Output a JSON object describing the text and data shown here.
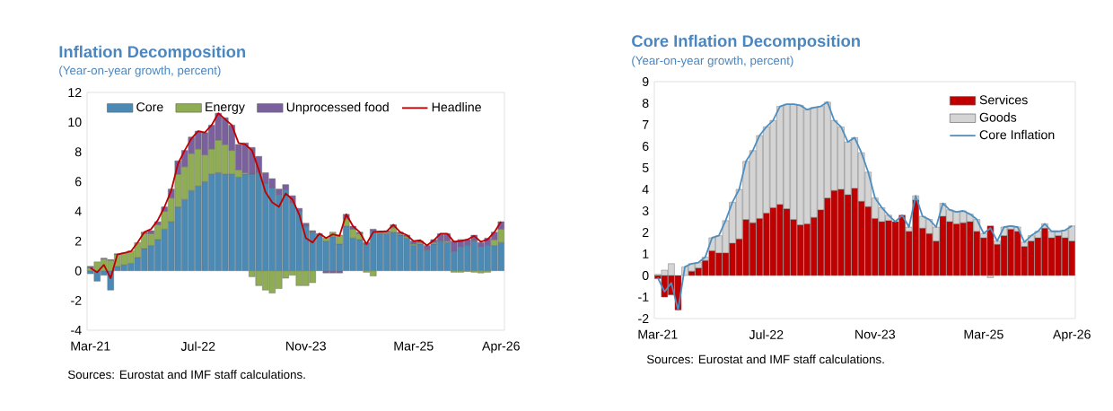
{
  "chart_data": [
    {
      "type": "bar",
      "title": "Inflation Decomposition",
      "subtitle": "(Year-on-year growth, percent)",
      "stacked": true,
      "legend": "top",
      "categories": [
        "Mar-21",
        null,
        null,
        null,
        null,
        null,
        null,
        null,
        null,
        null,
        null,
        null,
        null,
        null,
        null,
        null,
        "Jul-22",
        null,
        null,
        null,
        null,
        null,
        null,
        null,
        null,
        null,
        null,
        null,
        null,
        null,
        null,
        null,
        "Nov-23",
        null,
        null,
        null,
        null,
        null,
        null,
        null,
        null,
        null,
        null,
        null,
        null,
        null,
        null,
        null,
        "Mar-25",
        null,
        null,
        null,
        null,
        null,
        null,
        null,
        null,
        null,
        null,
        null,
        null,
        "Apr-26"
      ],
      "ylim": [
        -4,
        12
      ],
      "yticks": [
        -4,
        -2,
        0,
        2,
        4,
        6,
        8,
        10,
        12
      ],
      "series": [
        {
          "name": "Core",
          "color": "#4a8ab5",
          "values": [
            -0.2,
            -0.7,
            -0.3,
            -1.3,
            0.3,
            0.4,
            0.5,
            0.9,
            1.5,
            1.7,
            2.1,
            2.8,
            3.3,
            4.3,
            4.8,
            5.4,
            5.7,
            6.0,
            6.5,
            6.6,
            6.5,
            6.5,
            6.3,
            6.5,
            6.5,
            6.6,
            5.9,
            5.6,
            5.1,
            5.45,
            4.55,
            4.0,
            3.0,
            2.6,
            2.4,
            2.0,
            2.3,
            1.8,
            3.0,
            2.2,
            2.1,
            1.8,
            2.7,
            2.5,
            2.5,
            2.6,
            2.4,
            2.2,
            1.7,
            1.8,
            1.4,
            1.8,
            2.0,
            1.9,
            1.3,
            1.6,
            1.7,
            2.0,
            1.6,
            1.7,
            1.7,
            1.9
          ]
        },
        {
          "name": "Energy",
          "color": "#8fad52",
          "values": [
            0.2,
            0.6,
            0.8,
            0.7,
            0.8,
            0.8,
            0.85,
            1.0,
            1.0,
            0.8,
            1.0,
            1.2,
            1.6,
            2.2,
            2.2,
            2.5,
            2.5,
            1.8,
            1.7,
            2.2,
            2.0,
            1.6,
            0.5,
            0.1,
            -0.4,
            -1.0,
            -1.3,
            -1.5,
            -1.2,
            -0.5,
            -0.3,
            -1.0,
            -1.0,
            -0.8,
            0,
            0.2,
            0.3,
            0.6,
            0.5,
            0.6,
            0.4,
            -0.1,
            -0.35,
            0.05,
            0.1,
            0.3,
            0.1,
            0.1,
            0.1,
            0.1,
            0,
            0.1,
            0,
            0.1,
            -0.1,
            -0.1,
            -0.05,
            -0.1,
            -0.15,
            -0.1,
            0.4,
            0.9
          ]
        },
        {
          "name": "Unprocessed food",
          "color": "#7b609e",
          "values": [
            0.1,
            0,
            0.05,
            0.05,
            0.05,
            0,
            0,
            0,
            0.1,
            0.2,
            0.2,
            0.3,
            0.6,
            0.9,
            1.1,
            1.1,
            1.2,
            1.5,
            1.6,
            1.8,
            1.8,
            1.7,
            1.7,
            2.0,
            1.8,
            1.1,
            0.7,
            0.6,
            0.4,
            0.35,
            0.5,
            0.2,
            0.2,
            0.1,
            0.1,
            -0.15,
            -0.15,
            -0.15,
            0.3,
            0.2,
            0.1,
            0.1,
            0.1,
            0.1,
            0.1,
            0.2,
            0.1,
            0.1,
            0.2,
            0.1,
            0.3,
            0.2,
            0.5,
            0.5,
            0.7,
            0.5,
            0.4,
            0.4,
            0.3,
            0.5,
            0.5,
            0.5
          ]
        },
        {
          "name": "Headline",
          "type": "line",
          "color": "#c00000",
          "values": [
            0.2,
            -0.1,
            0.4,
            -0.5,
            1.1,
            1.2,
            1.3,
            1.9,
            2.6,
            2.8,
            3.4,
            4.3,
            5.4,
            7.2,
            8.1,
            8.9,
            9.4,
            9.3,
            9.8,
            10.6,
            10.2,
            9.8,
            8.6,
            8.5,
            8.1,
            6.8,
            5.3,
            4.6,
            4.3,
            5.2,
            4.8,
            3.8,
            2.2,
            1.9,
            2.5,
            2.2,
            2.45,
            2.35,
            3.8,
            3.0,
            2.6,
            1.8,
            2.6,
            2.65,
            2.65,
            3.1,
            2.6,
            2.4,
            2.0,
            2.05,
            1.7,
            2.05,
            2.5,
            2.5,
            1.95,
            2.0,
            2.1,
            2.35,
            1.95,
            2.1,
            2.6,
            3.3
          ]
        }
      ],
      "annotations": [
        "Sources: Eurostat and IMF staff calculations."
      ]
    },
    {
      "type": "bar",
      "title": "Core Inflation Decomposition",
      "subtitle": "(Year-on-year growth, percent)",
      "stacked": true,
      "legend": "top right",
      "categories": [
        "Mar-21",
        null,
        null,
        null,
        null,
        null,
        null,
        null,
        null,
        null,
        null,
        null,
        null,
        null,
        null,
        null,
        "Jul-22",
        null,
        null,
        null,
        null,
        null,
        null,
        null,
        null,
        null,
        null,
        null,
        null,
        null,
        null,
        null,
        "Nov-23",
        null,
        null,
        null,
        null,
        null,
        null,
        null,
        null,
        null,
        null,
        null,
        null,
        null,
        null,
        null,
        "Mar-25",
        null,
        null,
        null,
        null,
        null,
        null,
        null,
        null,
        null,
        null,
        null,
        null,
        "Apr-26"
      ],
      "ylim": [
        -2,
        9
      ],
      "yticks": [
        -2,
        -1,
        0,
        1,
        2,
        3,
        4,
        5,
        6,
        7,
        8,
        9
      ],
      "series": [
        {
          "name": "Services",
          "color": "#c00000",
          "values": [
            -0.15,
            -1.0,
            -0.9,
            -1.6,
            0,
            0.2,
            0.35,
            0.7,
            1.15,
            1.05,
            1.05,
            1.5,
            1.7,
            2.6,
            2.45,
            2.65,
            2.9,
            3.15,
            3.3,
            3.1,
            2.6,
            2.35,
            2.4,
            2.7,
            3.05,
            3.6,
            3.95,
            4.0,
            3.75,
            4.05,
            3.45,
            3.2,
            2.65,
            2.5,
            2.55,
            2.5,
            2.8,
            2.05,
            3.5,
            2.2,
            1.95,
            1.6,
            2.75,
            2.5,
            2.4,
            2.45,
            2.5,
            2.05,
            1.75,
            2.3,
            1.45,
            1.85,
            2.15,
            2.05,
            1.35,
            1.6,
            1.75,
            2.2,
            1.75,
            1.85,
            1.75,
            1.6
          ]
        },
        {
          "name": "Goods",
          "color": "#d4d4d4",
          "values": [
            0.05,
            0.25,
            0.55,
            0,
            0.4,
            0.35,
            0.25,
            0.15,
            0.6,
            0.8,
            1.5,
            1.9,
            2.3,
            2.7,
            3.35,
            3.85,
            4.0,
            4.05,
            4.55,
            4.85,
            5.35,
            5.55,
            5.3,
            5.1,
            4.8,
            4.45,
            3.25,
            2.9,
            2.45,
            2.35,
            2.25,
            1.6,
            0.95,
            0.65,
            0.25,
            0,
            0,
            0.2,
            0.2,
            0.55,
            0.65,
            0.65,
            0.6,
            0.55,
            0.55,
            0.55,
            0.35,
            0.55,
            0.2,
            -0.1,
            0.15,
            0.4,
            0.15,
            0.2,
            0.2,
            0.25,
            0.3,
            0.2,
            0.3,
            0.2,
            0.35,
            0.7
          ]
        },
        {
          "name": "Core Inflation",
          "type": "line",
          "color": "#4f8fc0",
          "values": [
            -0.1,
            -0.75,
            -0.35,
            -1.6,
            0.4,
            0.55,
            0.6,
            0.85,
            1.75,
            1.85,
            2.55,
            3.4,
            4.0,
            5.3,
            5.8,
            6.5,
            6.9,
            7.2,
            7.85,
            7.95,
            7.95,
            7.9,
            7.7,
            7.8,
            7.85,
            8.05,
            7.2,
            6.9,
            6.2,
            6.4,
            5.7,
            4.8,
            3.6,
            3.15,
            2.8,
            2.5,
            2.8,
            2.25,
            3.7,
            2.75,
            2.6,
            2.25,
            3.35,
            3.05,
            2.95,
            3.0,
            2.85,
            2.6,
            1.95,
            2.2,
            1.6,
            2.25,
            2.3,
            2.25,
            1.55,
            1.85,
            2.05,
            2.4,
            2.05,
            2.05,
            2.1,
            2.3
          ]
        }
      ],
      "annotations": [
        "Sources: Eurostat and IMF staff calculations."
      ]
    }
  ]
}
